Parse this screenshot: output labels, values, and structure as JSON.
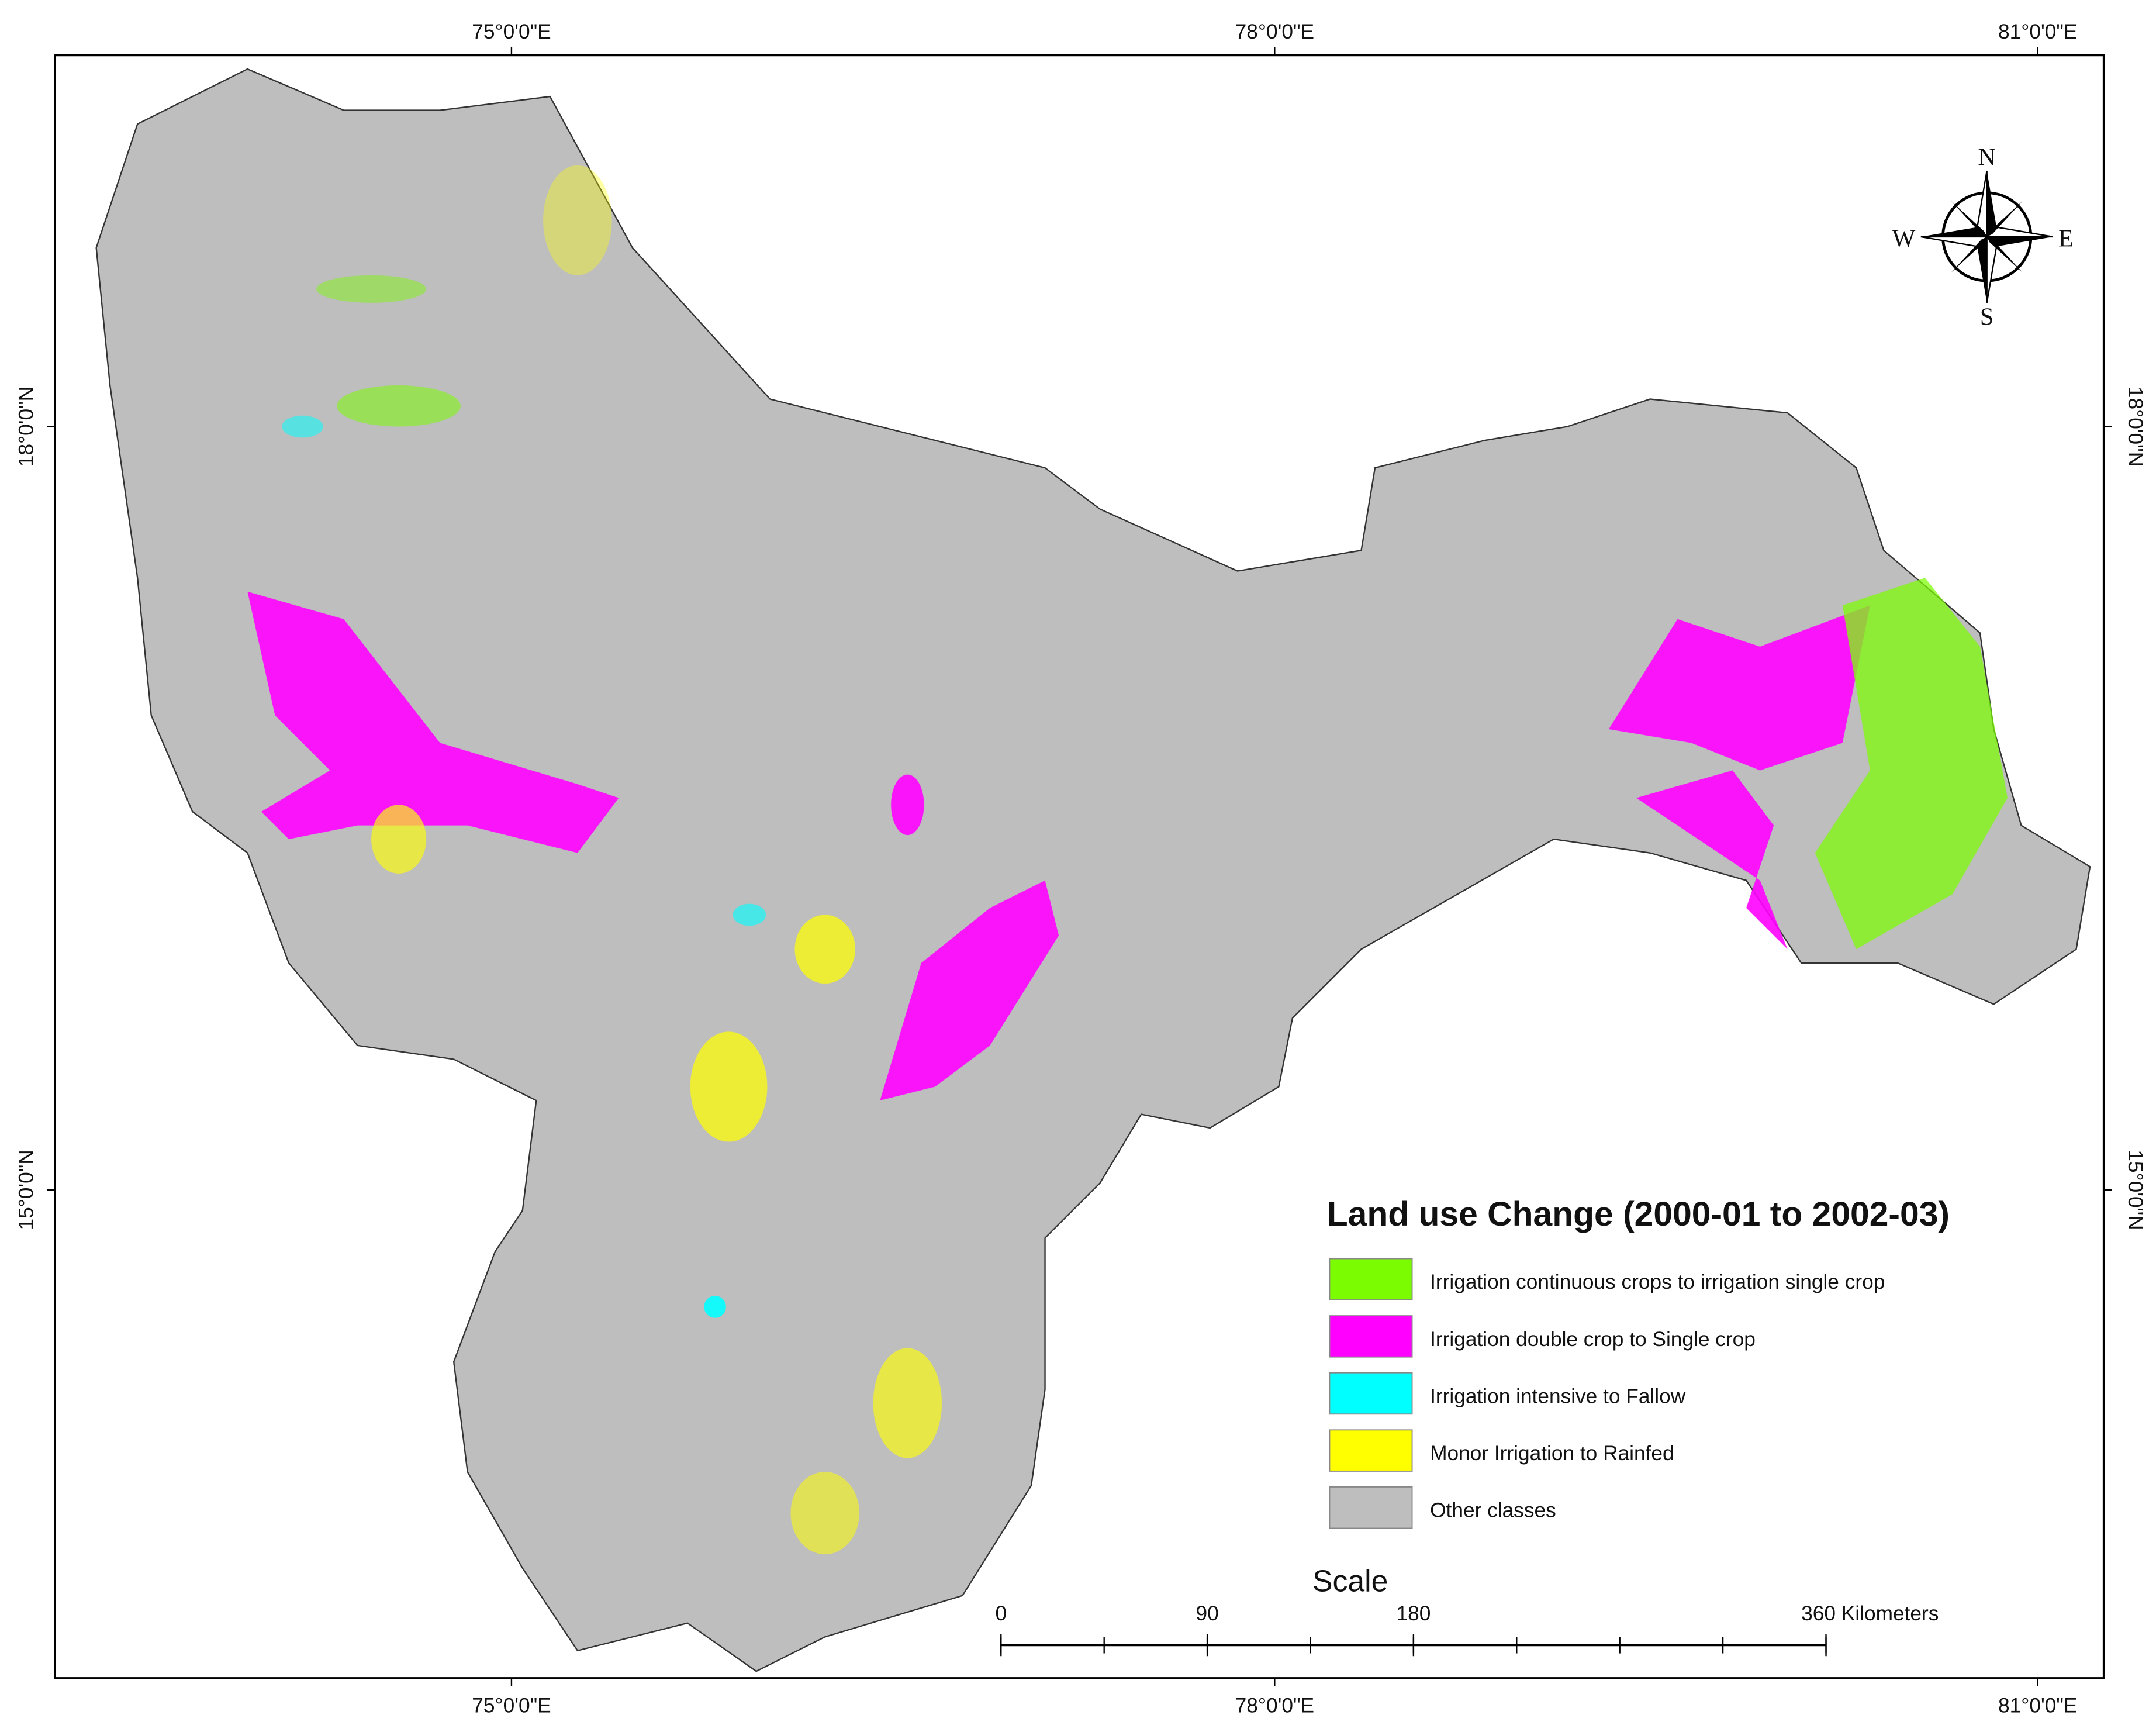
{
  "title": "Land use Change (2000-01 to 2002-03)",
  "legend": [
    {
      "label": "Irrigation continuous crops to irrigation single crop",
      "color": "#7cfc00"
    },
    {
      "label": "Irrigation double crop to Single crop",
      "color": "#ff00ff"
    },
    {
      "label": "Irrigation intensive to Fallow",
      "color": "#00ffff"
    },
    {
      "label": "Monor Irrigation to Rainfed",
      "color": "#ffff00"
    },
    {
      "label": "Other classes",
      "color": "#bebebe"
    }
  ],
  "longitude_ticks": [
    {
      "value": 75,
      "label": "75°0'0\"E"
    },
    {
      "value": 78,
      "label": "78°0'0\"E"
    },
    {
      "value": 81,
      "label": "81°0'0\"E"
    }
  ],
  "latitude_ticks": [
    {
      "value": 18,
      "label": "18°0'0\"N"
    },
    {
      "value": 15,
      "label": "15°0'0\"N"
    }
  ],
  "compass": {
    "north": "N",
    "south": "S",
    "east": "E",
    "west": "W"
  },
  "scale": {
    "title": "Scale",
    "ticks": [
      0,
      90,
      180,
      {
        "value": 360,
        "label": "360 Kilometers"
      }
    ]
  }
}
